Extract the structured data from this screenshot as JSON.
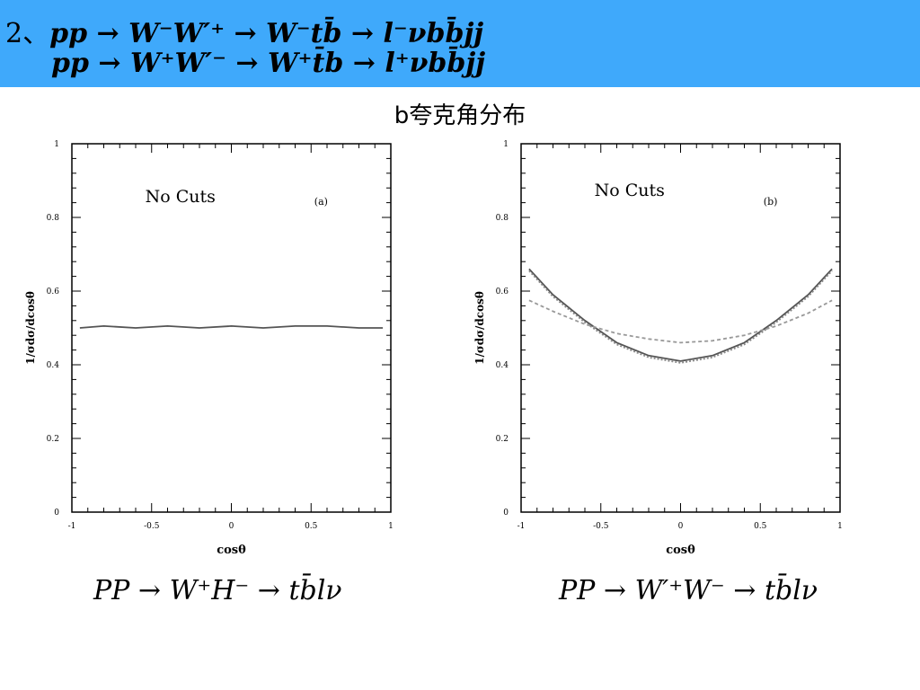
{
  "header": {
    "number": "2、",
    "line1": "pp → W⁻W′⁺ → W⁻tb̄ → l⁻νbb̄jj",
    "line2": "pp → W⁺W′⁻ → W⁺t̄b → l⁺νbb̄jj"
  },
  "subtitle": "b夸克角分布",
  "chart_data": [
    {
      "type": "line",
      "panel_tag": "(a)",
      "annotation": "No Cuts",
      "xlabel": "cosθ",
      "ylabel": "1/σdσ/dcosθ",
      "xlim": [
        -1,
        1
      ],
      "ylim": [
        0,
        1
      ],
      "x_ticks": [
        "-1",
        "-0.5",
        "0",
        "0.5",
        "1"
      ],
      "y_ticks": [
        "0",
        "0.2",
        "0.4",
        "0.6",
        "0.8",
        "1"
      ],
      "series": [
        {
          "style": "solid",
          "x": [
            -0.95,
            -0.8,
            -0.6,
            -0.4,
            -0.2,
            0,
            0.2,
            0.4,
            0.6,
            0.8,
            0.95
          ],
          "y": [
            0.5,
            0.505,
            0.5,
            0.505,
            0.5,
            0.505,
            0.5,
            0.505,
            0.505,
            0.5,
            0.5
          ]
        }
      ],
      "caption": "PP → W⁺H⁻ → tb̄lν"
    },
    {
      "type": "line",
      "panel_tag": "(b)",
      "annotation": "No Cuts",
      "xlabel": "cosθ",
      "ylabel": "1/σdσ/dcosθ",
      "xlim": [
        -1,
        1
      ],
      "ylim": [
        0,
        1
      ],
      "x_ticks": [
        "-1",
        "-0.5",
        "0",
        "0.5",
        "1"
      ],
      "y_ticks": [
        "0",
        "0.2",
        "0.4",
        "0.6",
        "0.8",
        "1"
      ],
      "series": [
        {
          "style": "solid",
          "x": [
            -0.95,
            -0.8,
            -0.6,
            -0.4,
            -0.2,
            0,
            0.2,
            0.4,
            0.6,
            0.8,
            0.95
          ],
          "y": [
            0.66,
            0.59,
            0.52,
            0.46,
            0.425,
            0.41,
            0.425,
            0.46,
            0.52,
            0.59,
            0.66
          ]
        },
        {
          "style": "dotted",
          "x": [
            -0.95,
            -0.8,
            -0.6,
            -0.4,
            -0.2,
            0,
            0.2,
            0.4,
            0.6,
            0.8,
            0.95
          ],
          "y": [
            0.655,
            0.585,
            0.515,
            0.455,
            0.42,
            0.405,
            0.42,
            0.455,
            0.515,
            0.585,
            0.655
          ]
        },
        {
          "style": "dashed",
          "x": [
            -0.95,
            -0.8,
            -0.6,
            -0.4,
            -0.2,
            0,
            0.2,
            0.4,
            0.6,
            0.8,
            0.95
          ],
          "y": [
            0.575,
            0.545,
            0.51,
            0.485,
            0.47,
            0.46,
            0.465,
            0.48,
            0.505,
            0.54,
            0.575
          ]
        }
      ],
      "caption": "PP → W′⁺W⁻ → tb̄lν"
    }
  ]
}
